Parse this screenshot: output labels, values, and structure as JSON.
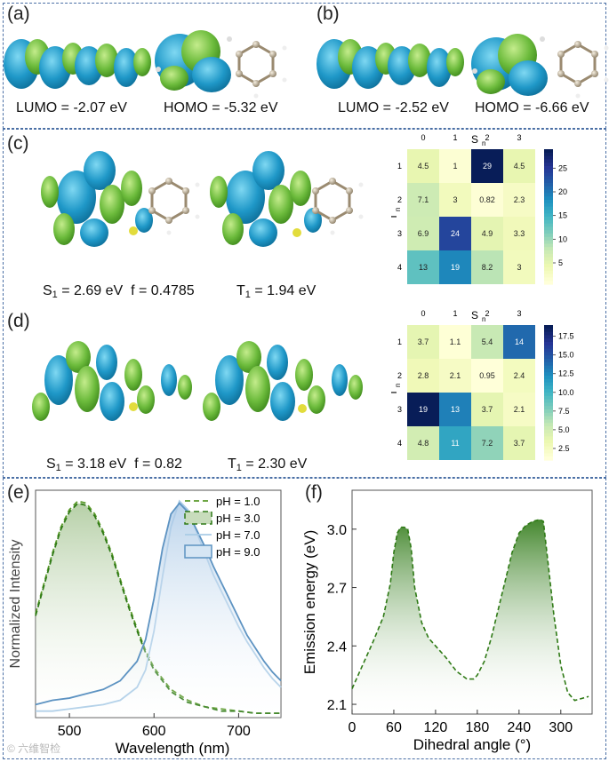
{
  "panel_a": {
    "label": "(a)",
    "lumo": "LUMO = -2.07 eV",
    "homo": "HOMO = -5.32 eV"
  },
  "panel_b": {
    "label": "(b)",
    "lumo": "LUMO = -2.52 eV",
    "homo": "HOMO = -6.66 eV"
  },
  "panel_c": {
    "label": "(c)",
    "s1_prefix": "S",
    "s1_sub": "1",
    "s1_text": " = 2.69 eV  f = 0.4785",
    "t1_prefix": "T",
    "t1_sub": "1",
    "t1_text": " = 1.94 eV"
  },
  "panel_d": {
    "label": "(d)",
    "s1_prefix": "S",
    "s1_sub": "1",
    "s1_text": " = 3.18 eV  f = 0.82",
    "t1_prefix": "T",
    "t1_sub": "1",
    "t1_text": " = 2.30 eV"
  },
  "panel_e": {
    "label": "(e)"
  },
  "panel_f": {
    "label": "(f)"
  },
  "watermark": "© 六维智检",
  "colors": {
    "frame": "#4a6fa5",
    "orbital_blue": "#2a9fcf",
    "orbital_green": "#6cbb3c",
    "acid_green": "#3a8a1e",
    "basic_blue": "#7fb0d4"
  },
  "chart_data": [
    {
      "type": "heatmap",
      "id": "c",
      "xlabel_main": "S",
      "xlabel_sub": "n",
      "ylabel_main": "T",
      "ylabel_sub": "n",
      "x_ticks": [
        "0",
        "1",
        "2",
        "3"
      ],
      "y_ticks": [
        "1",
        "2",
        "3",
        "4"
      ],
      "values": [
        [
          "4.5",
          "1",
          "29",
          "4.5"
        ],
        [
          "7.1",
          "3",
          "0.82",
          "2.3"
        ],
        [
          "6.9",
          "24",
          "4.9",
          "3.3"
        ],
        [
          "13",
          "19",
          "8.2",
          "3"
        ]
      ],
      "numeric": [
        [
          4.5,
          1,
          29,
          4.5
        ],
        [
          7.1,
          3,
          0.82,
          2.3
        ],
        [
          6.9,
          24,
          4.9,
          3.3
        ],
        [
          13,
          19,
          8.2,
          3
        ]
      ],
      "vmin": 0.5,
      "vmax": 29,
      "colorbar_ticks": [
        "25",
        "20",
        "15",
        "10",
        "5"
      ],
      "colorbar_vals": [
        25,
        20,
        15,
        10,
        5
      ]
    },
    {
      "type": "heatmap",
      "id": "d",
      "xlabel_main": "S",
      "xlabel_sub": "n",
      "ylabel_main": "T",
      "ylabel_sub": "n",
      "x_ticks": [
        "0",
        "1",
        "2",
        "3"
      ],
      "y_ticks": [
        "1",
        "2",
        "3",
        "4"
      ],
      "values": [
        [
          "3.7",
          "1.1",
          "5.4",
          "14"
        ],
        [
          "2.8",
          "2.1",
          "0.95",
          "2.4"
        ],
        [
          "19",
          "13",
          "3.7",
          "2.1"
        ],
        [
          "4.8",
          "11",
          "7.2",
          "3.7"
        ]
      ],
      "numeric": [
        [
          3.7,
          1.1,
          5.4,
          14
        ],
        [
          2.8,
          2.1,
          0.95,
          2.4
        ],
        [
          19,
          13,
          3.7,
          2.1
        ],
        [
          4.8,
          11,
          7.2,
          3.7
        ]
      ],
      "vmin": 0.95,
      "vmax": 19,
      "colorbar_ticks": [
        "17.5",
        "15.0",
        "12.5",
        "10.0",
        "7.5",
        "5.0",
        "2.5"
      ],
      "colorbar_vals": [
        17.5,
        15,
        12.5,
        10,
        7.5,
        5,
        2.5
      ]
    },
    {
      "type": "line",
      "id": "e",
      "xlabel": "Wavelength (nm)",
      "ylabel": "Normalized Intensity",
      "xlim": [
        460,
        750
      ],
      "ylim": [
        0,
        1.05
      ],
      "x_ticks": [
        "500",
        "600",
        "700"
      ],
      "x_tick_vals": [
        500,
        600,
        700
      ],
      "series": [
        {
          "name": "pH = 1.0",
          "style": "dash",
          "x": [
            460,
            470,
            480,
            490,
            500,
            510,
            520,
            530,
            540,
            550,
            560,
            570,
            580,
            590,
            600,
            620,
            640,
            660,
            680,
            700,
            720,
            740,
            750
          ],
          "y": [
            0.48,
            0.62,
            0.76,
            0.88,
            0.96,
            1.0,
            0.99,
            0.94,
            0.86,
            0.76,
            0.64,
            0.52,
            0.41,
            0.31,
            0.23,
            0.13,
            0.08,
            0.05,
            0.04,
            0.03,
            0.02,
            0.02,
            0.02
          ]
        },
        {
          "name": "pH = 3.0",
          "style": "dash-filled",
          "x": [
            460,
            470,
            480,
            490,
            500,
            510,
            520,
            530,
            540,
            550,
            560,
            570,
            580,
            590,
            600,
            620,
            640,
            660,
            680,
            700,
            720,
            740,
            750
          ],
          "y": [
            0.47,
            0.61,
            0.75,
            0.87,
            0.95,
            0.99,
            0.98,
            0.93,
            0.85,
            0.75,
            0.63,
            0.51,
            0.4,
            0.3,
            0.22,
            0.12,
            0.07,
            0.05,
            0.03,
            0.03,
            0.02,
            0.02,
            0.02
          ]
        },
        {
          "name": "pH = 7.0",
          "style": "line",
          "x": [
            460,
            480,
            500,
            520,
            540,
            560,
            580,
            590,
            600,
            610,
            620,
            630,
            640,
            650,
            660,
            670,
            680,
            690,
            700,
            710,
            720,
            730,
            740,
            750
          ],
          "y": [
            0.03,
            0.03,
            0.04,
            0.05,
            0.06,
            0.08,
            0.14,
            0.22,
            0.4,
            0.65,
            0.88,
            1.0,
            0.96,
            0.86,
            0.76,
            0.66,
            0.58,
            0.5,
            0.42,
            0.35,
            0.29,
            0.23,
            0.18,
            0.14
          ]
        },
        {
          "name": "pH = 9.0",
          "style": "line-filled",
          "x": [
            460,
            480,
            500,
            520,
            540,
            560,
            580,
            590,
            600,
            610,
            620,
            630,
            640,
            650,
            660,
            670,
            680,
            690,
            700,
            710,
            720,
            730,
            740,
            750
          ],
          "y": [
            0.06,
            0.08,
            0.09,
            0.11,
            0.13,
            0.17,
            0.26,
            0.36,
            0.55,
            0.78,
            0.94,
            0.99,
            0.95,
            0.87,
            0.79,
            0.7,
            0.62,
            0.54,
            0.46,
            0.38,
            0.32,
            0.26,
            0.21,
            0.17
          ]
        }
      ]
    },
    {
      "type": "area",
      "id": "f",
      "xlabel": "Dihedral angle (°)",
      "ylabel": "Emission energy (eV)",
      "xlim": [
        0,
        345
      ],
      "ylim": [
        2.05,
        3.2
      ],
      "x_ticks": [
        "0",
        "60",
        "120",
        "180",
        "240",
        "300"
      ],
      "x_tick_vals": [
        0,
        60,
        120,
        180,
        240,
        300
      ],
      "y_ticks": [
        "2.1",
        "2.4",
        "2.7",
        "3.0"
      ],
      "y_tick_vals": [
        2.1,
        2.4,
        2.7,
        3.0
      ],
      "x": [
        0,
        15,
        30,
        45,
        55,
        60,
        65,
        70,
        75,
        80,
        85,
        90,
        100,
        110,
        120,
        135,
        150,
        165,
        175,
        180,
        190,
        200,
        215,
        230,
        240,
        250,
        260,
        270,
        275,
        280,
        290,
        300,
        310,
        320,
        330,
        340
      ],
      "y": [
        2.18,
        2.3,
        2.42,
        2.55,
        2.72,
        2.88,
        2.98,
        3.01,
        3.01,
        3.0,
        2.9,
        2.7,
        2.52,
        2.44,
        2.4,
        2.34,
        2.27,
        2.23,
        2.23,
        2.25,
        2.32,
        2.44,
        2.66,
        2.88,
        2.98,
        3.02,
        3.04,
        3.05,
        3.04,
        2.88,
        2.56,
        2.3,
        2.16,
        2.12,
        2.13,
        2.14
      ]
    }
  ]
}
